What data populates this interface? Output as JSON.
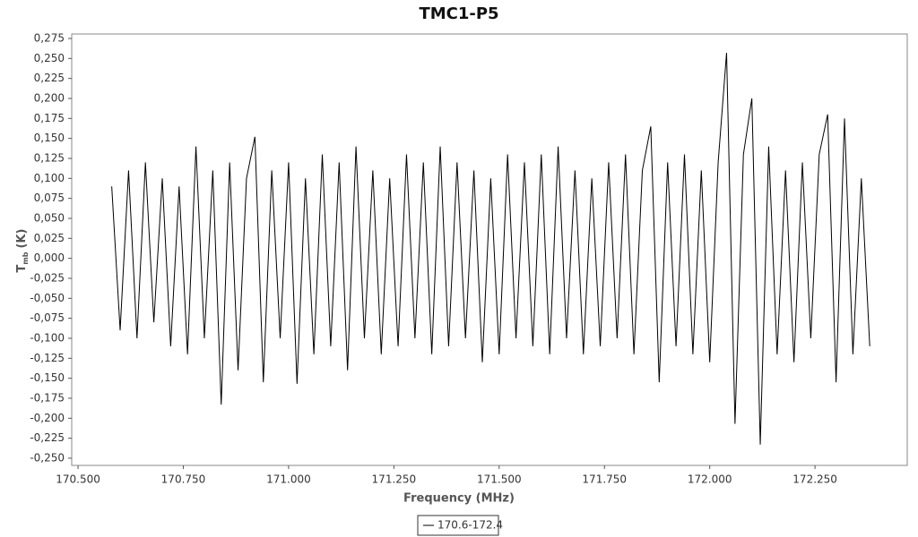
{
  "chart_data": {
    "type": "line",
    "title": "TMC1-P5",
    "x_label": "Frequency (MHz)",
    "y_label": "T",
    "y_label_sub": "mb",
    "y_label_unit": "(K)",
    "x": [
      170.58,
      170.6,
      170.62,
      170.64,
      170.66,
      170.68,
      170.7,
      170.72,
      170.74,
      170.76,
      170.78,
      170.8,
      170.82,
      170.84,
      170.86,
      170.88,
      170.9,
      170.92,
      170.94,
      170.96,
      170.98,
      171.0,
      171.02,
      171.04,
      171.06,
      171.08,
      171.1,
      171.12,
      171.14,
      171.16,
      171.18,
      171.2,
      171.22,
      171.24,
      171.26,
      171.28,
      171.3,
      171.32,
      171.34,
      171.36,
      171.38,
      171.4,
      171.42,
      171.44,
      171.46,
      171.48,
      171.5,
      171.52,
      171.54,
      171.56,
      171.58,
      171.6,
      171.62,
      171.64,
      171.66,
      171.68,
      171.7,
      171.72,
      171.74,
      171.76,
      171.78,
      171.8,
      171.82,
      171.84,
      171.86,
      171.88,
      171.9,
      171.92,
      171.94,
      171.96,
      171.98,
      172.0,
      172.02,
      172.04,
      172.06,
      172.08,
      172.1,
      172.12,
      172.14,
      172.16,
      172.18,
      172.2,
      172.22,
      172.24,
      172.26,
      172.28,
      172.3,
      172.32,
      172.34,
      172.36,
      172.38
    ],
    "series": [
      {
        "name": "170.6-172.4",
        "color": "#000000",
        "values": [
          0.09,
          -0.09,
          0.11,
          -0.1,
          0.12,
          -0.08,
          0.1,
          -0.11,
          0.09,
          -0.12,
          0.14,
          -0.1,
          0.11,
          -0.183,
          0.12,
          -0.14,
          0.1,
          0.152,
          -0.155,
          0.11,
          -0.1,
          0.12,
          -0.157,
          0.1,
          -0.12,
          0.13,
          -0.11,
          0.12,
          -0.14,
          0.14,
          -0.1,
          0.11,
          -0.12,
          0.1,
          -0.11,
          0.13,
          -0.1,
          0.12,
          -0.12,
          0.14,
          -0.11,
          0.12,
          -0.1,
          0.11,
          -0.13,
          0.1,
          -0.12,
          0.13,
          -0.1,
          0.12,
          -0.11,
          0.13,
          -0.12,
          0.14,
          -0.1,
          0.11,
          -0.12,
          0.1,
          -0.11,
          0.12,
          -0.1,
          0.13,
          -0.12,
          0.11,
          0.165,
          -0.155,
          0.12,
          -0.11,
          0.13,
          -0.12,
          0.11,
          -0.13,
          0.12,
          0.257,
          -0.207,
          0.13,
          0.2,
          -0.233,
          0.14,
          -0.12,
          0.11,
          -0.13,
          0.12,
          -0.1,
          0.13,
          0.18,
          -0.155,
          0.175,
          -0.12,
          0.1,
          -0.11
        ]
      }
    ],
    "xlim": [
      170.485,
      172.469
    ],
    "ylim": [
      -0.259,
      0.2806
    ],
    "xticks": [
      {
        "value": 170.5,
        "label": "170.500"
      },
      {
        "value": 170.75,
        "label": "170.750"
      },
      {
        "value": 171.0,
        "label": "171.000"
      },
      {
        "value": 171.25,
        "label": "171.250"
      },
      {
        "value": 171.5,
        "label": "171.500"
      },
      {
        "value": 171.75,
        "label": "171.750"
      },
      {
        "value": 172.0,
        "label": "172.000"
      },
      {
        "value": 172.25,
        "label": "172.250"
      }
    ],
    "yticks": [
      {
        "value": -0.25,
        "label": "-0,250"
      },
      {
        "value": -0.225,
        "label": "-0,225"
      },
      {
        "value": -0.2,
        "label": "-0,200"
      },
      {
        "value": -0.175,
        "label": "-0,175"
      },
      {
        "value": -0.15,
        "label": "-0,150"
      },
      {
        "value": -0.125,
        "label": "-0,125"
      },
      {
        "value": -0.1,
        "label": "-0,100"
      },
      {
        "value": -0.075,
        "label": "-0,075"
      },
      {
        "value": -0.05,
        "label": "-0,050"
      },
      {
        "value": -0.025,
        "label": "-0,025"
      },
      {
        "value": 0,
        "label": "0,000"
      },
      {
        "value": 0.025,
        "label": "0,025"
      },
      {
        "value": 0.05,
        "label": "0,050"
      },
      {
        "value": 0.075,
        "label": "0,075"
      },
      {
        "value": 0.1,
        "label": "0,100"
      },
      {
        "value": 0.125,
        "label": "0,125"
      },
      {
        "value": 0.15,
        "label": "0,150"
      },
      {
        "value": 0.175,
        "label": "0,175"
      },
      {
        "value": 0.2,
        "label": "0,200"
      },
      {
        "value": 0.225,
        "label": "0,225"
      },
      {
        "value": 0.25,
        "label": "0,250"
      },
      {
        "value": 0.275,
        "label": "0,275"
      }
    ],
    "grid": false,
    "legend": "bottom"
  }
}
